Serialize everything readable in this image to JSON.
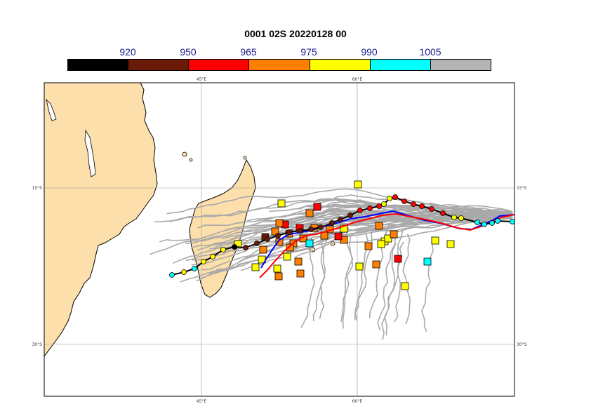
{
  "title": "0001 02S 20220128 00",
  "scale": {
    "labels": [
      "920",
      "950",
      "965",
      "975",
      "990",
      "1005"
    ],
    "colors": [
      "#000000",
      "#6b1a08",
      "#ff0000",
      "#ff8000",
      "#ffff00",
      "#00ffff",
      "#b4b4b4"
    ]
  },
  "axes": {
    "lon_labels": [
      "45°E",
      "60°E"
    ],
    "lat_labels": [
      "15°S",
      "30°S"
    ]
  },
  "colors": {
    "land": "#fcdfaa",
    "ensemble": "#a9a9a9",
    "best_track": "#000000",
    "forecast_a": "#0000ff",
    "forecast_b": "#ff0000"
  }
}
